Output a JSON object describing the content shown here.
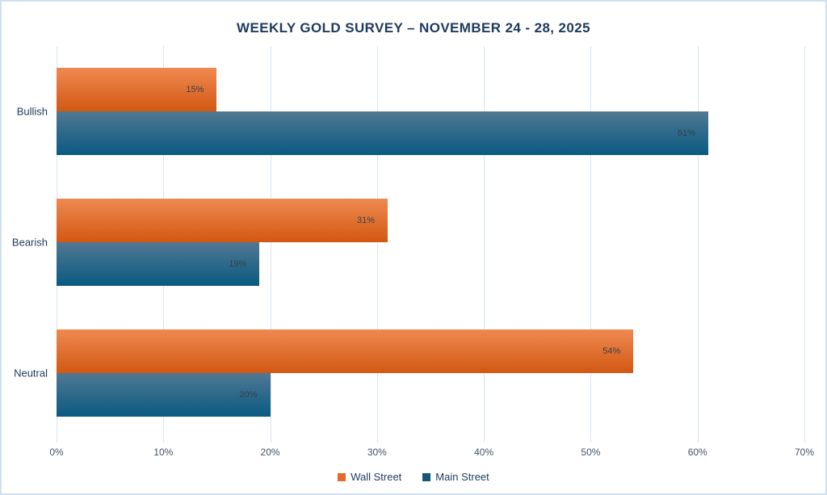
{
  "page": {
    "background": "#ffffff",
    "border_color": "#cfe0f0"
  },
  "chart_data": {
    "type": "bar",
    "orientation": "horizontal",
    "title": "WEEKLY GOLD SURVEY – NOVEMBER 24 - 28, 2025",
    "categories": [
      "Bullish",
      "Bearish",
      "Neutral"
    ],
    "series": [
      {
        "name": "Wall Street",
        "values": [
          15,
          31,
          54
        ],
        "labels": [
          "15%",
          "31%",
          "54%"
        ],
        "gradient_top": "#ef8951",
        "gradient_bottom": "#d25812",
        "legend_color": "#e5692b"
      },
      {
        "name": "Main Street",
        "values": [
          61,
          19,
          20
        ],
        "labels": [
          "61%",
          "19%",
          "20%"
        ],
        "gradient_top": "#507893",
        "gradient_bottom": "#0a5a81",
        "legend_color": "#16587d"
      }
    ],
    "xlim": [
      0,
      70
    ],
    "x_ticks": [
      "0%",
      "10%",
      "20%",
      "30%",
      "40%",
      "50%",
      "60%",
      "70%"
    ],
    "grid": true,
    "gridline_color": "#d8e5f3",
    "legend_position": "bottom-center",
    "text_colors": {
      "title": "#1e3a5f",
      "category": "#1e3a5f",
      "tick": "#44546a",
      "value_label": "#333f4d",
      "legend": "#1e3a5f"
    }
  }
}
